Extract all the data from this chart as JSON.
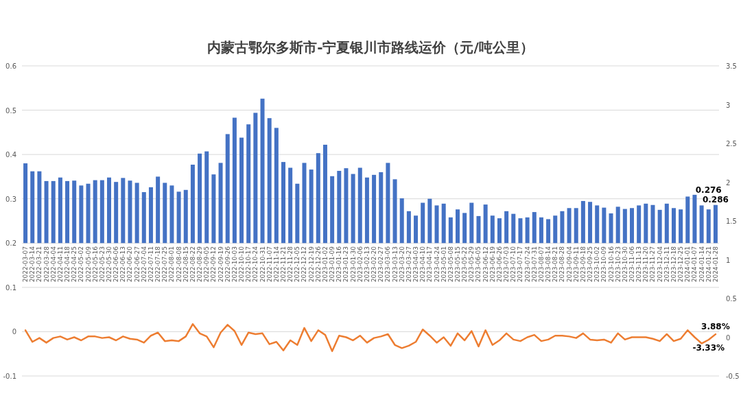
{
  "chart_data": {
    "type": "bar",
    "title": "内蒙古鄂尔多斯市-宁夏银川市路线运价（元/吨公里）",
    "categories": [
      "2022-03-07",
      "2022-03-14",
      "2022-03-21",
      "2022-03-28",
      "2022-04-04",
      "2022-04-11",
      "2022-04-18",
      "2022-04-25",
      "2022-05-02",
      "2022-05-09",
      "2022-05-16",
      "2022-05-23",
      "2022-05-30",
      "2022-06-06",
      "2022-06-13",
      "2022-06-20",
      "2022-06-27",
      "2022-07-04",
      "2022-07-11",
      "2022-07-18",
      "2022-07-25",
      "2022-08-01",
      "2022-08-08",
      "2022-08-15",
      "2022-08-22",
      "2022-08-29",
      "2022-09-05",
      "2022-09-12",
      "2022-09-19",
      "2022-09-26",
      "2022-10-03",
      "2022-10-10",
      "2022-10-17",
      "2022-10-24",
      "2022-10-31",
      "2022-11-07",
      "2022-11-14",
      "2022-11-21",
      "2022-11-28",
      "2022-12-05",
      "2022-12-12",
      "2022-12-19",
      "2022-12-26",
      "2023-01-02",
      "2023-01-09",
      "2023-01-16",
      "2023-01-23",
      "2023-01-30",
      "2023-02-06",
      "2023-02-13",
      "2023-02-20",
      "2023-02-27",
      "2023-03-06",
      "2023-03-13",
      "2023-03-20",
      "2023-03-27",
      "2023-04-03",
      "2023-04-10",
      "2023-04-17",
      "2023-04-24",
      "2023-05-01",
      "2023-05-08",
      "2023-05-15",
      "2023-05-22",
      "2023-05-29",
      "2023-06-05",
      "2023-06-12",
      "2023-06-19",
      "2023-06-26",
      "2023-07-03",
      "2023-07-10",
      "2023-07-17",
      "2023-07-24",
      "2023-07-31",
      "2023-08-07",
      "2023-08-14",
      "2023-08-21",
      "2023-08-28",
      "2023-09-04",
      "2023-09-11",
      "2023-09-18",
      "2023-09-25",
      "2023-10-02",
      "2023-10-09",
      "2023-10-16",
      "2023-10-23",
      "2023-10-30",
      "2023-11-06",
      "2023-11-13",
      "2023-11-20",
      "2023-11-27",
      "2023-12-04",
      "2023-12-11",
      "2023-12-18",
      "2023-12-25",
      "2024-01-01",
      "2024-01-07",
      "2024-01-14",
      "2024-01-21",
      "2024-01-28"
    ],
    "series": [
      {
        "color": "#4472c4",
        "base": [
          0.2,
          0.2,
          0.2,
          0.2,
          0.2,
          0.2,
          0.2,
          0.2,
          0.2,
          0.2,
          0.2,
          0.2,
          0.2,
          0.2,
          0.2,
          0.2,
          0.2,
          0.2,
          0.2,
          0.2,
          0.2,
          0.2,
          0.2,
          0.2,
          0.2,
          0.2,
          0.2,
          0.2,
          0.2,
          0.2,
          0.2,
          0.2,
          0.2,
          0.2,
          0.2,
          0.2,
          0.2,
          0.2,
          0.2,
          0.2,
          0.2,
          0.2,
          0.2,
          0.2,
          0.2,
          0.2,
          0.2,
          0.2,
          0.2,
          0.2,
          0.2,
          0.2,
          0.2,
          0.2,
          0.2,
          0.2,
          0.2,
          0.2,
          0.2,
          0.2,
          0.2,
          0.2,
          0.2,
          0.2,
          0.2,
          0.2,
          0.2,
          0.2,
          0.2,
          0.2,
          0.2,
          0.2,
          0.2,
          0.2,
          0.2,
          0.2,
          0.2,
          0.2,
          0.2,
          0.2,
          0.2,
          0.2,
          0.2,
          0.2,
          0.2,
          0.2,
          0.2,
          0.2,
          0.2,
          0.2,
          0.2,
          0.2,
          0.2,
          0.2,
          0.2,
          0.2,
          0.2,
          0.2,
          0.2,
          0.2
        ],
        "values": [
          0.18,
          0.162,
          0.162,
          0.14,
          0.14,
          0.148,
          0.14,
          0.141,
          0.13,
          0.134,
          0.142,
          0.142,
          0.148,
          0.138,
          0.147,
          0.141,
          0.136,
          0.115,
          0.126,
          0.15,
          0.136,
          0.13,
          0.116,
          0.12,
          0.177,
          0.202,
          0.207,
          0.155,
          0.181,
          0.246,
          0.283,
          0.238,
          0.268,
          0.294,
          0.326,
          0.282,
          0.26,
          0.183,
          0.17,
          0.134,
          0.181,
          0.166,
          0.203,
          0.222,
          0.151,
          0.163,
          0.169,
          0.156,
          0.17,
          0.148,
          0.154,
          0.16,
          0.181,
          0.144,
          0.101,
          0.072,
          0.062,
          0.091,
          0.1,
          0.085,
          0.089,
          0.058,
          0.076,
          0.068,
          0.091,
          0.061,
          0.087,
          0.062,
          0.056,
          0.072,
          0.066,
          0.056,
          0.058,
          0.07,
          0.058,
          0.054,
          0.062,
          0.072,
          0.079,
          0.079,
          0.095,
          0.093,
          0.085,
          0.08,
          0.067,
          0.082,
          0.077,
          0.079,
          0.085,
          0.089,
          0.086,
          0.075,
          0.089,
          0.079,
          0.076,
          0.105,
          0.109,
          0.085,
          0.076,
          0.086
        ]
      },
      {
        "type": "line",
        "axis": "y2",
        "color": "#ed7d31",
        "values": [
          0.09,
          -0.06,
          -0.01,
          -0.07,
          -0.01,
          0.01,
          -0.03,
          0.0,
          -0.04,
          0.01,
          0.01,
          -0.01,
          0.0,
          -0.04,
          0.01,
          -0.02,
          -0.03,
          -0.07,
          0.02,
          0.06,
          -0.05,
          -0.04,
          -0.05,
          0.01,
          0.17,
          0.05,
          0.01,
          -0.13,
          0.06,
          0.16,
          0.08,
          -0.1,
          0.06,
          0.04,
          0.05,
          -0.09,
          -0.06,
          -0.17,
          -0.04,
          -0.1,
          0.12,
          -0.05,
          0.09,
          0.03,
          -0.18,
          0.02,
          0.0,
          -0.04,
          0.02,
          -0.07,
          -0.01,
          0.01,
          0.04,
          -0.1,
          -0.14,
          -0.11,
          -0.06,
          0.1,
          0.02,
          -0.07,
          0.0,
          -0.11,
          0.05,
          -0.04,
          0.08,
          -0.12,
          0.09,
          -0.1,
          -0.04,
          0.05,
          -0.03,
          -0.05,
          0.0,
          0.03,
          -0.05,
          -0.03,
          0.02,
          0.02,
          0.01,
          -0.01,
          0.05,
          -0.03,
          -0.04,
          -0.03,
          -0.07,
          0.05,
          -0.03,
          0.0,
          0.0,
          0.0,
          -0.02,
          -0.05,
          0.04,
          -0.05,
          -0.02,
          0.09,
          0.0,
          -0.08,
          -0.0333,
          0.0388
        ],
        "value_labels": [
          null,
          null,
          null,
          null,
          null,
          null,
          null,
          null,
          null,
          null,
          null,
          null,
          null,
          null,
          null,
          null,
          null,
          null,
          null,
          null,
          null,
          null,
          null,
          null,
          null,
          null,
          null,
          null,
          null,
          null,
          null,
          null,
          null,
          null,
          null,
          null,
          null,
          null,
          null,
          null,
          null,
          null,
          null,
          null,
          null,
          null,
          null,
          null,
          null,
          null,
          null,
          null,
          null,
          null,
          null,
          null,
          null,
          null,
          null,
          null,
          null,
          null,
          null,
          null,
          null,
          null,
          null,
          null,
          null,
          null,
          null,
          null,
          null,
          null,
          null,
          null,
          null,
          null,
          null,
          null,
          null,
          null,
          null,
          null,
          null,
          null,
          null,
          null,
          null,
          null,
          null,
          null,
          null,
          null,
          null,
          null,
          null,
          null,
          "-3.33%",
          "3.88%"
        ]
      }
    ],
    "annotations": [
      {
        "text": "0.276",
        "x": "2024-01-21",
        "y": 0.276
      },
      {
        "text": "0.286",
        "x": "2024-01-28",
        "y": 0.286
      }
    ],
    "ylim": [
      -0.1,
      0.6
    ],
    "yticks": [
      -0.1,
      0,
      0.1,
      0.2,
      0.3,
      0.4,
      0.5,
      0.6
    ],
    "y2lim": [
      -0.5,
      3.5
    ],
    "y2ticks": [
      -0.5,
      0,
      0.5,
      1,
      1.5,
      2,
      2.5,
      3,
      3.5
    ],
    "grid": "y"
  }
}
